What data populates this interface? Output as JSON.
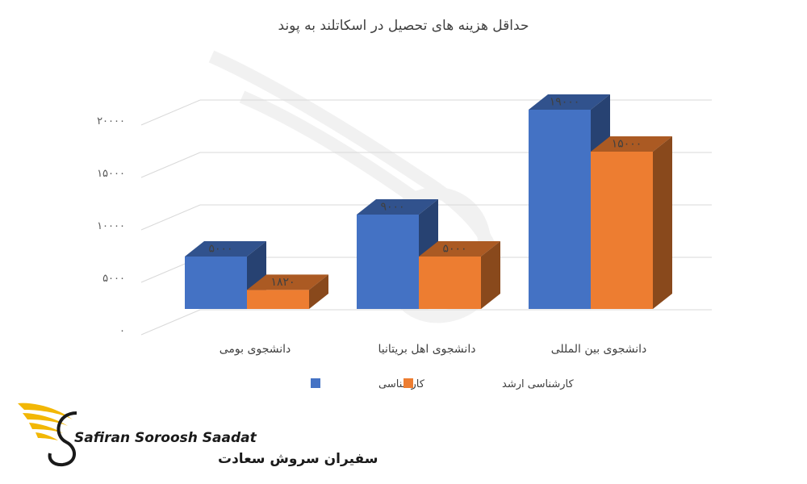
{
  "chart_data": {
    "type": "bar",
    "title": "حداقل هزینه های تحصیل در اسکاتلند به پوند",
    "categories": [
      "دانشجوی بومی",
      "دانشجوی اهل بریتانیا",
      "دانشجوی بین المللی"
    ],
    "series": [
      {
        "name": "کارشناسی",
        "color": "#4472C4",
        "values": [
          5000,
          9000,
          19000
        ],
        "value_labels": [
          "۵۰۰۰",
          "۹۰۰۰",
          "۱۹۰۰۰"
        ]
      },
      {
        "name": "کارشناسی ارشد",
        "color": "#ED7D31",
        "values": [
          1820,
          5000,
          15000
        ],
        "value_labels": [
          "۱۸۲۰",
          "۵۰۰۰",
          "۱۵۰۰۰"
        ]
      }
    ],
    "y_ticks": [
      {
        "value": 0,
        "label": "۰"
      },
      {
        "value": 5000,
        "label": "۵۰۰۰"
      },
      {
        "value": 10000,
        "label": "۱۰۰۰۰"
      },
      {
        "value": 15000,
        "label": "۱۵۰۰۰"
      },
      {
        "value": 20000,
        "label": "۲۰۰۰۰"
      }
    ],
    "ylim": [
      0,
      20000
    ],
    "grid": true,
    "legend_position": "bottom",
    "style": "3d-clustered-bar"
  },
  "brand": {
    "name_en": "Safiran Soroosh Saadat",
    "name_fa": "سفیران سروش سعادت",
    "icon": "winged-s-logo",
    "color": "#F2B705"
  }
}
